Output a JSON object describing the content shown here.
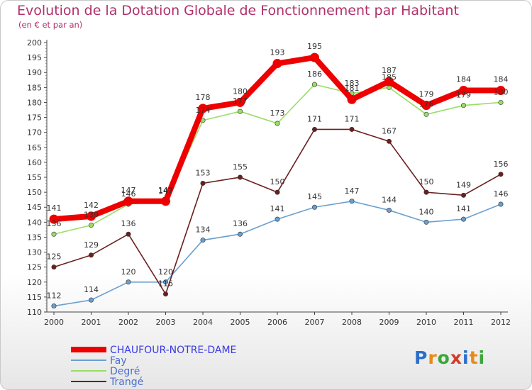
{
  "title": "Evolution de la Dotation Globale de Fonctionnement par Habitant",
  "subtitle": "(en € et par an)",
  "brand": {
    "letters": [
      "P",
      "r",
      "o",
      "x",
      "i",
      "t",
      "i"
    ],
    "colors": [
      "#2a6fc9",
      "#e88a1a",
      "#3aa63a",
      "#d43a2a",
      "#2a6fc9",
      "#e88a1a",
      "#3aa63a"
    ]
  },
  "chart_data": {
    "type": "line",
    "title": "Evolution de la Dotation Globale de Fonctionnement par Habitant",
    "subtitle": "(en € et par an)",
    "x": [
      2000,
      2001,
      2002,
      2003,
      2004,
      2005,
      2006,
      2007,
      2008,
      2009,
      2010,
      2011,
      2012
    ],
    "ylim": [
      110,
      200
    ],
    "yticks": [
      110,
      115,
      120,
      125,
      130,
      135,
      140,
      145,
      150,
      155,
      160,
      165,
      170,
      175,
      180,
      185,
      190,
      195,
      200
    ],
    "grid": false,
    "legend_position": "bottom-left",
    "series": [
      {
        "name": "CHAUFOUR-NOTRE-DAME",
        "color": "#ee0000",
        "emphasis": true,
        "values": [
          141,
          142,
          147,
          147,
          178,
          180,
          193,
          195,
          181,
          187,
          179,
          184,
          184
        ]
      },
      {
        "name": "Fay",
        "color": "#6a9fd0",
        "values": [
          112,
          114,
          120,
          120,
          134,
          136,
          141,
          145,
          147,
          144,
          140,
          141,
          146
        ]
      },
      {
        "name": "Degré",
        "color": "#99dd66",
        "values": [
          136,
          139,
          146,
          147,
          174,
          177,
          173,
          186,
          183,
          185,
          176,
          179,
          180
        ]
      },
      {
        "name": "Trangé",
        "color": "#6b1f1f",
        "values": [
          125,
          129,
          136,
          116,
          153,
          155,
          150,
          171,
          171,
          167,
          150,
          149,
          156
        ]
      }
    ]
  }
}
